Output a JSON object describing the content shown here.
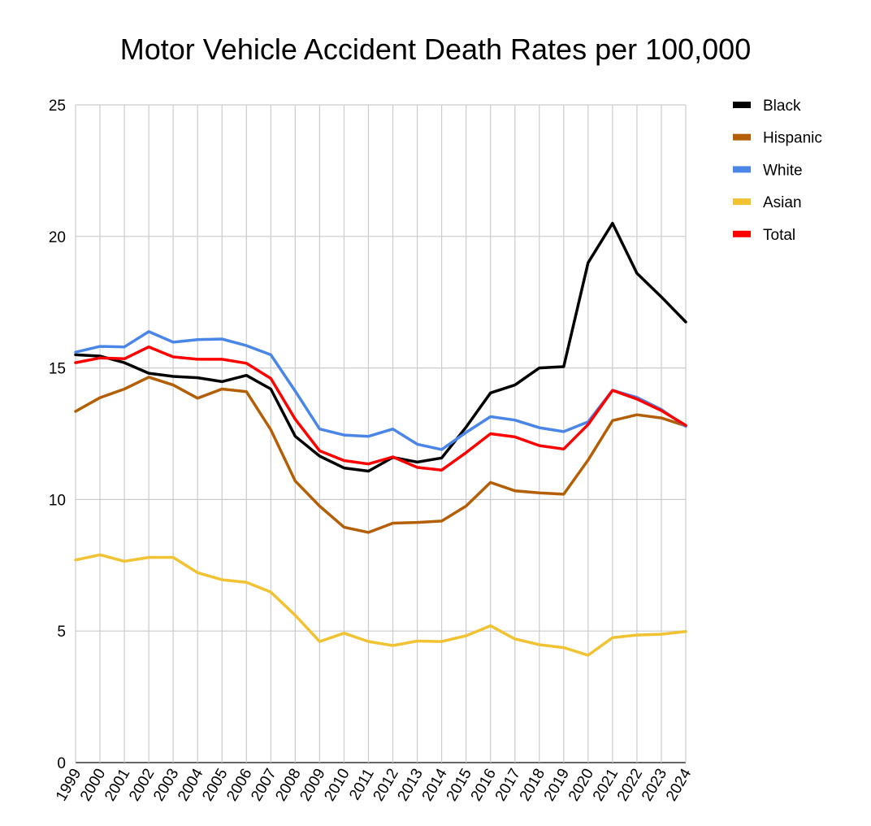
{
  "chart_data": {
    "type": "line",
    "title": "Motor Vehicle Accident Death Rates per 100,000",
    "xlabel": "",
    "ylabel": "",
    "ylim": [
      0,
      25
    ],
    "yticks": [
      "0",
      "5",
      "10",
      "15",
      "20",
      "25"
    ],
    "grid": true,
    "legend_position": "right",
    "categories": [
      "1999",
      "2000",
      "2001",
      "2002",
      "2003",
      "2004",
      "2005",
      "2006",
      "2007",
      "2008",
      "2009",
      "2010",
      "2011",
      "2012",
      "2013",
      "2014",
      "2015",
      "2016",
      "2017",
      "2018",
      "2019",
      "2020",
      "2021",
      "2022",
      "2023",
      "2024"
    ],
    "series": [
      {
        "name": "Black",
        "color": "#000000",
        "values": [
          15.5,
          15.45,
          15.2,
          14.8,
          14.68,
          14.63,
          14.48,
          14.72,
          14.2,
          12.4,
          11.65,
          11.2,
          11.08,
          11.6,
          11.42,
          11.58,
          12.75,
          14.05,
          14.35,
          15.0,
          15.05,
          19.0,
          20.5,
          18.6,
          17.7,
          16.75
        ]
      },
      {
        "name": "Hispanic",
        "color": "#b45f06",
        "values": [
          13.35,
          13.87,
          14.2,
          14.65,
          14.35,
          13.85,
          14.2,
          14.1,
          12.65,
          10.7,
          9.75,
          8.95,
          8.75,
          9.1,
          9.13,
          9.18,
          9.75,
          10.65,
          10.33,
          10.25,
          10.2,
          11.5,
          13.0,
          13.22,
          13.1,
          12.8
        ]
      },
      {
        "name": "White",
        "color": "#4a86e8",
        "values": [
          15.6,
          15.82,
          15.8,
          16.38,
          15.98,
          16.08,
          16.1,
          15.85,
          15.5,
          14.12,
          12.68,
          12.45,
          12.4,
          12.68,
          12.1,
          11.9,
          12.55,
          13.15,
          13.02,
          12.73,
          12.58,
          12.95,
          14.15,
          13.88,
          13.42,
          12.78
        ]
      },
      {
        "name": "Asian",
        "color": "#f1c232",
        "values": [
          7.7,
          7.9,
          7.65,
          7.8,
          7.8,
          7.22,
          6.95,
          6.85,
          6.48,
          5.6,
          4.6,
          4.92,
          4.6,
          4.45,
          4.62,
          4.6,
          4.82,
          5.2,
          4.7,
          4.48,
          4.37,
          4.08,
          4.75,
          4.85,
          4.88,
          4.98
        ]
      },
      {
        "name": "Total",
        "color": "#ff0000",
        "values": [
          15.2,
          15.38,
          15.35,
          15.8,
          15.42,
          15.33,
          15.33,
          15.18,
          14.6,
          13.05,
          11.85,
          11.48,
          11.35,
          11.62,
          11.22,
          11.12,
          11.78,
          12.5,
          12.38,
          12.05,
          11.92,
          12.85,
          14.15,
          13.82,
          13.38,
          12.82
        ]
      }
    ]
  }
}
